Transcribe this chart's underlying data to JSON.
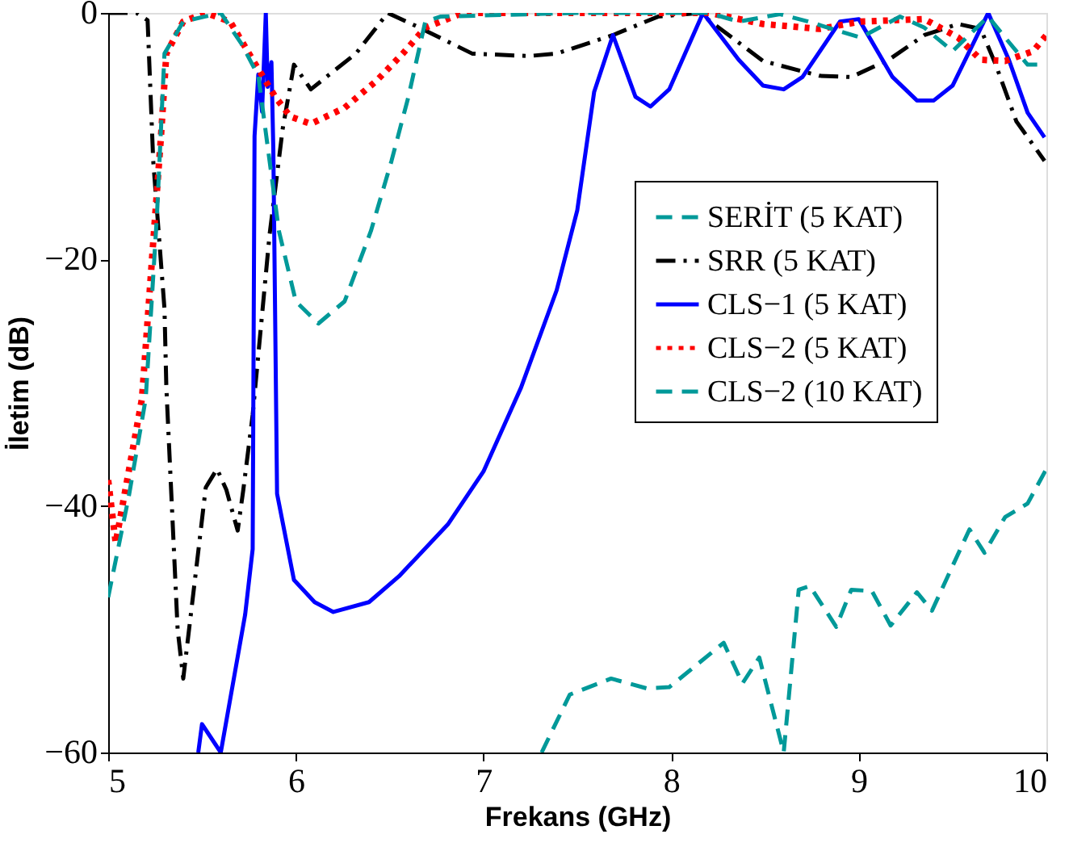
{
  "chart_data": {
    "type": "line",
    "xlabel": "Frekans (GHz)",
    "ylabel": "İletim (dB)",
    "xlim": [
      5,
      10
    ],
    "ylim": [
      -60,
      0
    ],
    "xticks": [
      5,
      6,
      7,
      8,
      9,
      10
    ],
    "yticks": [
      -60,
      -40,
      -20,
      0
    ],
    "grid": false,
    "legend": "right",
    "series": [
      {
        "name": "SERİT (5 KAT)",
        "color": "#009999",
        "line_style": "dashed",
        "x": [
          7.31,
          7.46,
          7.68,
          7.87,
          7.99,
          8.28,
          8.38,
          8.47,
          8.6,
          8.68,
          8.74,
          8.88,
          8.96,
          9.07,
          9.17,
          9.31,
          9.39,
          9.59,
          9.67,
          9.78,
          9.9,
          10
        ],
        "values": [
          -60,
          -55.3,
          -54,
          -54.8,
          -54.7,
          -51.1,
          -54.4,
          -52.3,
          -60,
          -46.8,
          -46.5,
          -49.8,
          -46.8,
          -46.9,
          -49.7,
          -47,
          -48.5,
          -41.9,
          -43.8,
          -40.9,
          -39.8,
          -37
        ]
      },
      {
        "name": "SRR (5 KAT)",
        "color": "#000000",
        "line_style": "dashdot",
        "x": [
          5,
          5.15,
          5.21,
          5.24,
          5.3,
          5.31,
          5.37,
          5.4,
          5.47,
          5.52,
          5.58,
          5.63,
          5.69,
          5.72,
          5.77,
          5.86,
          5.93,
          5.99,
          6.08,
          6.17,
          6.32,
          6.49,
          6.66,
          6.94,
          7.24,
          7.39,
          7.69,
          7.93,
          8.15,
          8.49,
          8.79,
          8.96,
          9.16,
          9.35,
          9.53,
          9.65,
          9.73,
          9.84,
          9.99
        ],
        "values": [
          0,
          0,
          -0.6,
          -12,
          -24,
          -30.4,
          -50,
          -54,
          -45,
          -38.5,
          -37,
          -38.7,
          -42,
          -38.7,
          -32.6,
          -18,
          -9.4,
          -4.2,
          -6.2,
          -5.1,
          -3.3,
          0,
          -1.2,
          -3.3,
          -3.5,
          -3.3,
          -1.8,
          -0.3,
          0,
          -3.9,
          -5.1,
          -5.2,
          -3.8,
          -1.8,
          -0.9,
          -1.3,
          -4.2,
          -8.8,
          -12
        ]
      },
      {
        "name": "CLS−1 (5 KAT)",
        "color": "#0000ff",
        "line_style": "solid",
        "x": [
          5.48,
          5.5,
          5.6,
          5.73,
          5.77,
          5.78,
          5.8,
          5.82,
          5.84,
          5.85,
          5.87,
          5.88,
          5.9,
          5.99,
          6.1,
          6.2,
          6.39,
          6.55,
          6.81,
          7.0,
          7.2,
          7.39,
          7.5,
          7.59,
          7.69,
          7.81,
          7.89,
          7.99,
          8.17,
          8.36,
          8.49,
          8.6,
          8.7,
          8.9,
          9.0,
          9.18,
          9.31,
          9.4,
          9.5,
          9.69,
          9.8,
          9.9,
          9.99
        ],
        "values": [
          -60,
          -57.7,
          -60,
          -48.8,
          -43.5,
          -10,
          -5,
          -8,
          0,
          -6,
          -4,
          -11,
          -39,
          -46,
          -47.8,
          -48.6,
          -47.8,
          -45.7,
          -41.5,
          -37.2,
          -30.4,
          -22.5,
          -16,
          -6.4,
          -1.8,
          -6.8,
          -7.6,
          -6.2,
          0,
          -3.8,
          -5.9,
          -6.2,
          -5.2,
          -0.7,
          -0.5,
          -5.2,
          -7.1,
          -7.1,
          -5.9,
          0,
          -3.8,
          -8.1,
          -10.1
        ]
      },
      {
        "name": "CLS−2 (5 KAT)",
        "color": "#ff0000",
        "line_style": "dotted",
        "x": [
          5,
          5.04,
          5.18,
          5.24,
          5.28,
          5.31,
          5.4,
          5.52,
          5.65,
          5.77,
          5.89,
          5.97,
          6.08,
          6.26,
          6.43,
          6.57,
          6.69,
          6.89,
          7.5,
          8.2,
          8.49,
          8.79,
          9.01,
          9.35,
          9.53,
          9.65,
          9.78,
          9.93,
          10
        ],
        "values": [
          -37.9,
          -43,
          -31.3,
          -18.6,
          -10.3,
          -3.3,
          -0.7,
          0,
          -0.7,
          -3.8,
          -6.8,
          -8.4,
          -9,
          -7.7,
          -5.5,
          -3.3,
          -1.2,
          0,
          0,
          0,
          -0.9,
          -1.3,
          -0.7,
          -0.5,
          -2,
          -3.8,
          -3.9,
          -3.1,
          -1.8
        ]
      },
      {
        "name": "CLS−2 (10 KAT)",
        "color": "#009999",
        "line_style": "dashed",
        "x": [
          5,
          5.11,
          5.2,
          5.26,
          5.3,
          5.4,
          5.6,
          5.71,
          5.8,
          5.86,
          5.91,
          6.0,
          6.12,
          6.26,
          6.4,
          6.51,
          6.6,
          6.69,
          6.77,
          7.5,
          8.2,
          8.36,
          8.58,
          8.73,
          9.01,
          9.22,
          9.35,
          9.5,
          9.69,
          9.78,
          9.9,
          10
        ],
        "values": [
          -47.4,
          -39.2,
          -31.3,
          -16.4,
          -3.3,
          -0.7,
          0,
          -2.5,
          -5.1,
          -12,
          -17.7,
          -23.4,
          -25.2,
          -23.4,
          -17.7,
          -12,
          -6.8,
          -0.7,
          -0.3,
          0,
          0,
          -0.7,
          -0.1,
          -0.7,
          -2,
          -0.3,
          -1.2,
          -3.1,
          -0.3,
          -2,
          -4.2,
          -4.2
        ]
      }
    ]
  }
}
